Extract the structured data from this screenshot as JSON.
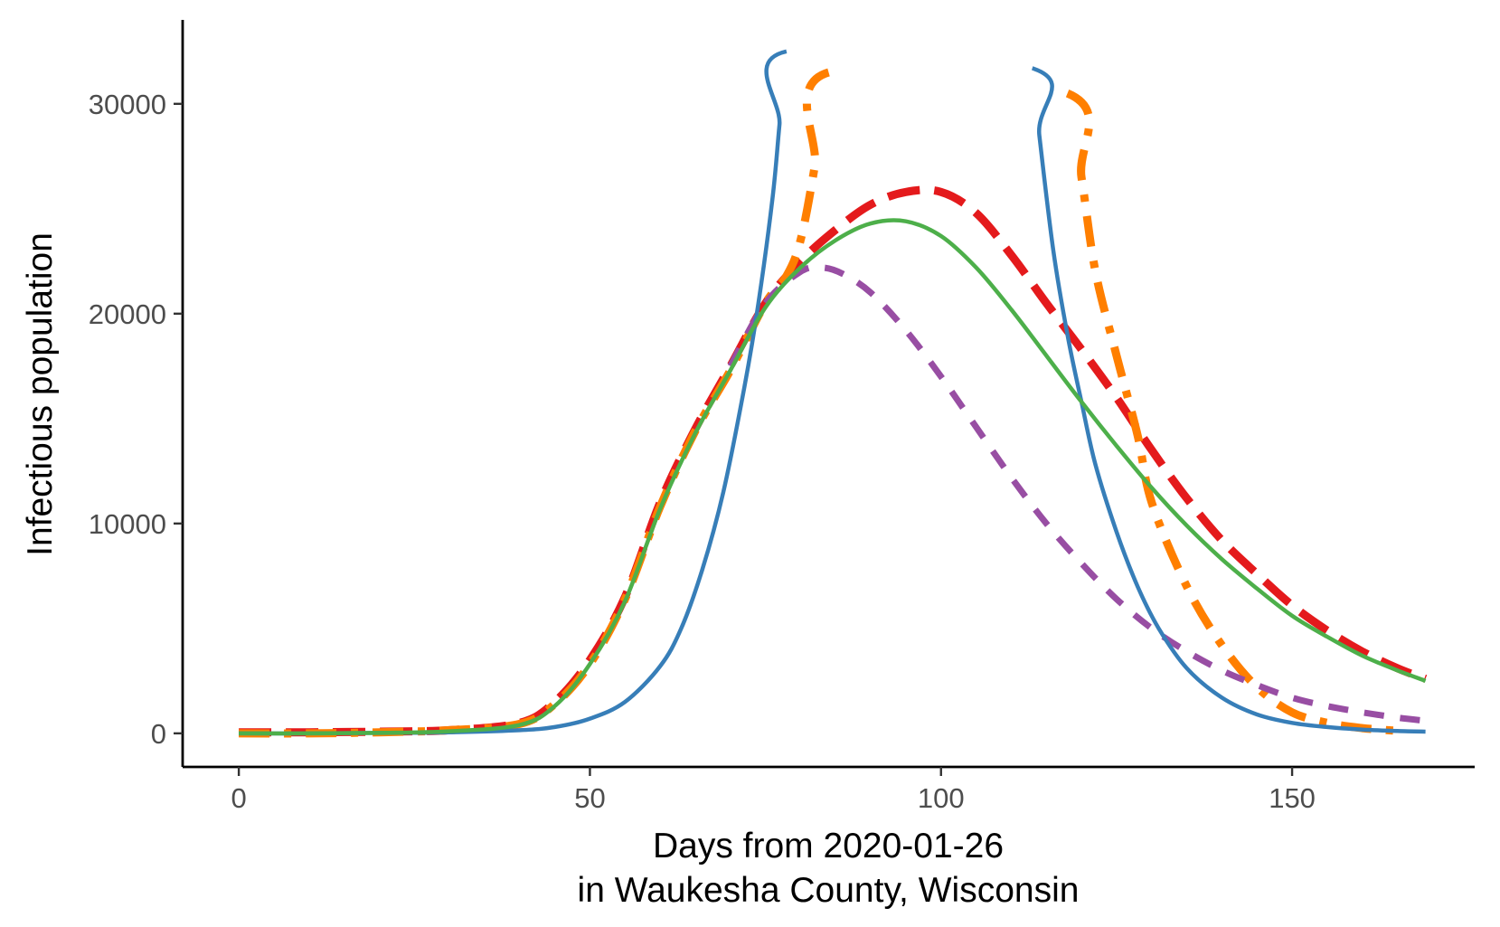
{
  "chart_data": {
    "type": "line",
    "title": "",
    "xlabel_line1": "Days from 2020-01-26",
    "xlabel_line2": "in Waukesha County, Wisconsin",
    "ylabel": "Infectious population",
    "xlim": [
      -8,
      176
    ],
    "ylim": [
      -1600,
      34000
    ],
    "x_ticks": [
      0,
      50,
      100,
      150
    ],
    "x_tick_labels": [
      "0",
      "50",
      "100",
      "150"
    ],
    "y_ticks": [
      0,
      10000,
      20000,
      30000
    ],
    "y_tick_labels": [
      "0",
      "10000",
      "20000",
      "30000"
    ],
    "grid": false,
    "legend": "none",
    "series": [
      {
        "color": "#E41A1C",
        "dash": "long-dash",
        "x": [
          0,
          10,
          20,
          30,
          40,
          45,
          50,
          55,
          60,
          65,
          70,
          75,
          80,
          85,
          90,
          95,
          100,
          105,
          110,
          115,
          120,
          125,
          130,
          135,
          140,
          145,
          150,
          155,
          160,
          165,
          169
        ],
        "y": [
          50,
          50,
          80,
          150,
          500,
          1500,
          3500,
          6500,
          11000,
          14500,
          17500,
          20500,
          22500,
          24000,
          25200,
          25800,
          25800,
          24800,
          22800,
          20500,
          18300,
          16000,
          13500,
          11200,
          9200,
          7600,
          6100,
          4900,
          3900,
          3100,
          2600
        ]
      },
      {
        "color": "#FF7F00",
        "dash": "dash-dot",
        "x": [
          0,
          10,
          20,
          30,
          40,
          45,
          50,
          55,
          60,
          65,
          70,
          75,
          78,
          80,
          82,
          84,
          118,
          120,
          122,
          125,
          128,
          130,
          135,
          140,
          145,
          150,
          155,
          160,
          165
        ],
        "y": [
          0,
          0,
          50,
          150,
          450,
          1400,
          3300,
          6400,
          10800,
          14400,
          17300,
          20500,
          21800,
          23500,
          27000,
          31500,
          30500,
          26500,
          22000,
          18000,
          14200,
          11000,
          7000,
          4200,
          2200,
          1000,
          500,
          250,
          120
        ]
      },
      {
        "color": "#984EA3",
        "dash": "dashed",
        "x": [
          70,
          75,
          80,
          83,
          86,
          90,
          95,
          100,
          105,
          110,
          115,
          120,
          125,
          130,
          135,
          140,
          145,
          150,
          155,
          160,
          165,
          169
        ],
        "y": [
          17500,
          20500,
          22000,
          22200,
          21900,
          21000,
          19200,
          17000,
          14600,
          12200,
          10000,
          8100,
          6400,
          5000,
          3900,
          3000,
          2300,
          1700,
          1300,
          1000,
          750,
          600
        ]
      },
      {
        "color": "#377EB8",
        "dash": "solid",
        "x": [
          0,
          10,
          20,
          30,
          40,
          45,
          50,
          55,
          60,
          63,
          66,
          69,
          72,
          74,
          76,
          77,
          78,
          113,
          114,
          116,
          118,
          120,
          122,
          125,
          128,
          131,
          135,
          140,
          145,
          150,
          155,
          160,
          165,
          169
        ],
        "y": [
          0,
          0,
          20,
          50,
          150,
          300,
          700,
          1500,
          3200,
          5000,
          7800,
          11500,
          16500,
          20500,
          25500,
          29000,
          32500,
          31700,
          28500,
          23000,
          19000,
          15800,
          12800,
          9600,
          7000,
          5000,
          3100,
          1700,
          900,
          500,
          300,
          180,
          110,
          80
        ]
      },
      {
        "color": "#4DAF4A",
        "dash": "solid",
        "x": [
          0,
          10,
          20,
          30,
          40,
          45,
          50,
          55,
          60,
          65,
          70,
          75,
          80,
          85,
          90,
          95,
          100,
          105,
          110,
          115,
          120,
          125,
          130,
          135,
          140,
          145,
          150,
          155,
          160,
          165,
          169
        ],
        "y": [
          0,
          0,
          20,
          100,
          400,
          1300,
          3300,
          6300,
          10700,
          14300,
          17300,
          20300,
          22200,
          23500,
          24300,
          24400,
          23700,
          22200,
          20200,
          18000,
          15800,
          13700,
          11700,
          9900,
          8300,
          6900,
          5600,
          4600,
          3700,
          3000,
          2500
        ]
      }
    ]
  }
}
